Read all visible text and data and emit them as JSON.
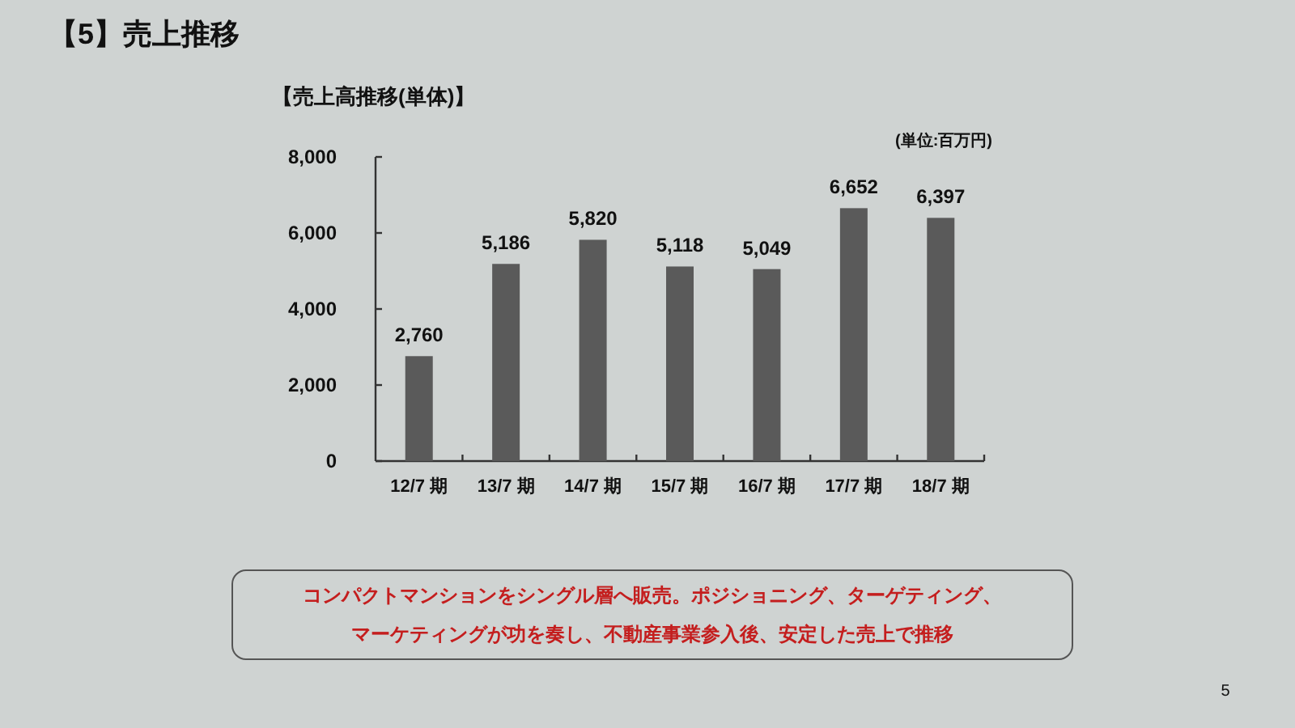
{
  "chart_data": {
    "type": "bar",
    "title": "【5】売上推移",
    "subtitle": "【売上高推移(単体)】",
    "categories": [
      "12/7 期",
      "13/7 期",
      "14/7 期",
      "15/7 期",
      "16/7 期",
      "17/7 期",
      "18/7 期"
    ],
    "values": [
      2760,
      5186,
      5820,
      5118,
      5049,
      6652,
      6397
    ],
    "color": "#5a5a5a",
    "value_labels": [
      "2,760",
      "5,186",
      "5,820",
      "5,118",
      "5,049",
      "6,652",
      "6,397"
    ],
    "ylim": [
      0,
      8000
    ],
    "yticks": [
      0,
      {
        "value": 2000,
        "label": "2,000"
      },
      {
        "value": 4000,
        "label": "4,000"
      },
      {
        "value": 6000,
        "label": "6,000"
      },
      {
        "value": 8000,
        "label": "8,000"
      }
    ],
    "annotations": [
      "(単位:百万円)",
      "コンパクトマンションをシングル層へ販売。ポジショニング、ターゲティング、マーケティングが功を奏し、不動産事業参入後、安定した売上で推移",
      "5"
    ]
  }
}
